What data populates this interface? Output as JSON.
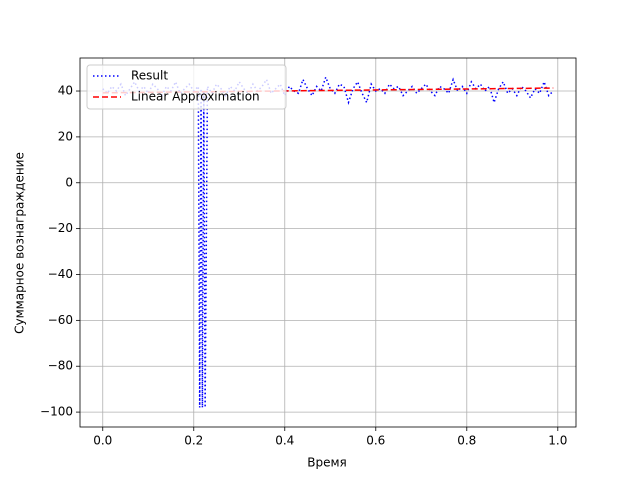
{
  "chart_data": {
    "type": "line",
    "xlabel": "Время",
    "ylabel": "Суммарное вознаграждение",
    "xlim": [
      -0.05,
      1.04
    ],
    "ylim": [
      -106.5,
      54.4
    ],
    "xticks": [
      {
        "value": 0,
        "label": "0.0"
      },
      {
        "value": 0.2,
        "label": "0.2"
      },
      {
        "value": 0.4,
        "label": "0.4"
      },
      {
        "value": 0.6,
        "label": "0.6"
      },
      {
        "value": 0.8,
        "label": "0.8"
      },
      {
        "value": 1,
        "label": "1.0"
      }
    ],
    "yticks": [
      {
        "value": -100,
        "label": "−100"
      },
      {
        "value": -80,
        "label": "−80"
      },
      {
        "value": -60,
        "label": "−60"
      },
      {
        "value": -40,
        "label": "−40"
      },
      {
        "value": -20,
        "label": "−20"
      },
      0,
      20,
      40
    ],
    "grid": true,
    "legend": "upper-left",
    "series": [
      {
        "name": "Result",
        "color": "#0000ff",
        "dash": "dotted",
        "x": [
          0,
          0.01,
          0.02,
          0.03,
          0.04,
          0.05,
          0.06,
          0.07,
          0.08,
          0.09,
          0.1,
          0.11,
          0.12,
          0.13,
          0.14,
          0.15,
          0.16,
          0.17,
          0.18,
          0.19,
          0.2,
          0.21,
          0.213,
          0.216,
          0.219,
          0.222,
          0.225,
          0.23,
          0.24,
          0.25,
          0.26,
          0.27,
          0.28,
          0.29,
          0.3,
          0.31,
          0.32,
          0.33,
          0.34,
          0.35,
          0.36,
          0.37,
          0.38,
          0.39,
          0.4,
          0.41,
          0.42,
          0.43,
          0.44,
          0.45,
          0.46,
          0.47,
          0.48,
          0.49,
          0.5,
          0.51,
          0.52,
          0.53,
          0.54,
          0.55,
          0.56,
          0.57,
          0.58,
          0.59,
          0.6,
          0.61,
          0.62,
          0.63,
          0.64,
          0.65,
          0.66,
          0.67,
          0.68,
          0.69,
          0.7,
          0.71,
          0.72,
          0.73,
          0.74,
          0.75,
          0.76,
          0.77,
          0.78,
          0.79,
          0.8,
          0.81,
          0.82,
          0.83,
          0.84,
          0.85,
          0.86,
          0.87,
          0.88,
          0.89,
          0.9,
          0.91,
          0.92,
          0.93,
          0.94,
          0.95,
          0.96,
          0.97,
          0.98,
          0.99
        ],
        "values": [
          41,
          39,
          42,
          40,
          43,
          38,
          41,
          44,
          40,
          42,
          39,
          43,
          41,
          38,
          42,
          40,
          44,
          39,
          41,
          43,
          40,
          42,
          -98,
          41,
          -98,
          40,
          -98,
          42,
          39,
          43,
          41,
          38,
          42,
          40,
          44,
          41,
          39,
          43,
          40,
          42,
          45,
          39,
          41,
          43,
          38,
          42,
          40,
          39,
          45,
          41,
          38,
          42,
          40,
          46,
          41,
          39,
          43,
          42,
          35,
          41,
          44,
          39,
          35,
          43,
          40,
          41,
          39,
          43,
          41,
          42,
          38,
          40,
          42,
          39,
          41,
          43,
          40,
          38,
          42,
          41,
          39,
          45,
          40,
          42,
          39,
          44,
          41,
          43,
          40,
          42,
          35,
          41,
          44,
          39,
          41,
          38,
          42,
          40,
          37,
          41,
          39,
          44,
          38,
          40
        ]
      },
      {
        "name": "Linear Approximation",
        "color": "#ff0000",
        "dash": "dashed",
        "x": [
          0,
          0.99
        ],
        "values": [
          39.2,
          41.3
        ]
      }
    ]
  }
}
